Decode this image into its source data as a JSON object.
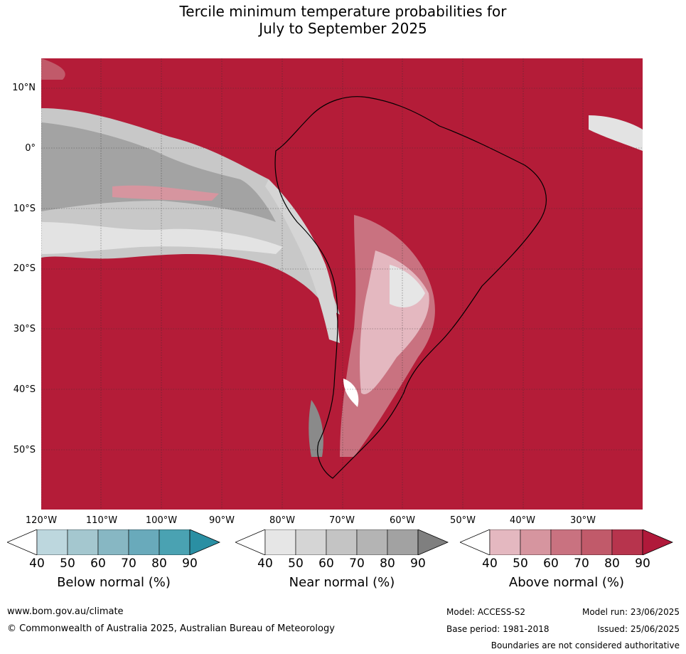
{
  "title_line1": "Tercile minimum temperature probabilities for",
  "title_line2": "July to September 2025",
  "lat_labels": [
    "10°N",
    "0°",
    "10°S",
    "20°S",
    "30°S",
    "40°S",
    "50°S"
  ],
  "lon_labels": [
    "120°W",
    "110°W",
    "100°W",
    "90°W",
    "80°W",
    "70°W",
    "60°W",
    "50°W",
    "40°W",
    "30°W"
  ],
  "colorbars": [
    {
      "name": "Below normal (%)",
      "ticks": [
        "40",
        "50",
        "60",
        "70",
        "80",
        "90"
      ],
      "colors": [
        "#ffffff",
        "#bdd7de",
        "#a4c7cf",
        "#87b7c3",
        "#69aabb",
        "#4aa2b2",
        "#2a8fa3"
      ]
    },
    {
      "name": "Near normal (%)",
      "ticks": [
        "40",
        "50",
        "60",
        "70",
        "80",
        "90"
      ],
      "colors": [
        "#ffffff",
        "#e6e6e6",
        "#d5d5d5",
        "#c4c4c4",
        "#b4b4b4",
        "#a2a2a2",
        "#7f7f7f"
      ]
    },
    {
      "name": "Above normal (%)",
      "ticks": [
        "40",
        "50",
        "60",
        "70",
        "80",
        "90"
      ],
      "colors": [
        "#ffffff",
        "#e4b8c0",
        "#d6959f",
        "#c97280",
        "#c15a6a",
        "#b7344d",
        "#b0193a"
      ]
    }
  ],
  "footer": {
    "url": "www.bom.gov.au/climate",
    "copyright": "© Commonwealth of Australia 2025, Australian Bureau of Meteorology",
    "model": "Model: ACCESS-S2",
    "model_run": "Model run: 23/06/2025",
    "base_period": "Base period: 1981-2018",
    "issued": "Issued: 25/06/2025",
    "boundaries_note": "Boundaries are not considered authoritative"
  }
}
